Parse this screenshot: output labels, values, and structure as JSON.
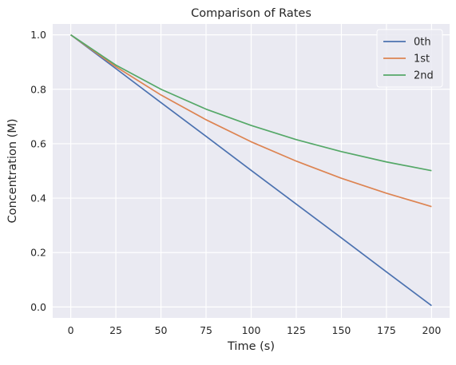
{
  "chart_data": {
    "type": "line",
    "title": "Comparison of Rates",
    "xlabel": "Time (s)",
    "ylabel": "Concentration (M)",
    "xlim": [
      -10,
      210
    ],
    "ylim": [
      -0.04,
      1.04
    ],
    "xticks": [
      0,
      25,
      50,
      75,
      100,
      125,
      150,
      175,
      200
    ],
    "yticks": [
      0.0,
      0.2,
      0.4,
      0.6,
      0.8,
      1.0
    ],
    "xtick_labels": [
      "0",
      "25",
      "50",
      "75",
      "100",
      "125",
      "150",
      "175",
      "200"
    ],
    "ytick_labels": [
      "0.0",
      "0.2",
      "0.4",
      "0.6",
      "0.8",
      "1.0"
    ],
    "grid": true,
    "legend_position": "top-right",
    "background": "#eaeaf2",
    "grid_color": "#ffffff",
    "x": [
      0,
      25,
      50,
      75,
      100,
      125,
      150,
      175,
      200
    ],
    "series": [
      {
        "name": "0th",
        "color": "#4c72b0",
        "values": [
          1.0,
          0.876,
          0.751,
          0.627,
          0.502,
          0.378,
          0.254,
          0.129,
          0.005
        ]
      },
      {
        "name": "1st",
        "color": "#dd8452",
        "values": [
          1.0,
          0.883,
          0.779,
          0.688,
          0.607,
          0.536,
          0.473,
          0.418,
          0.369
        ]
      },
      {
        "name": "2nd",
        "color": "#55a868",
        "values": [
          1.0,
          0.889,
          0.8,
          0.727,
          0.667,
          0.615,
          0.571,
          0.533,
          0.501
        ]
      }
    ]
  }
}
